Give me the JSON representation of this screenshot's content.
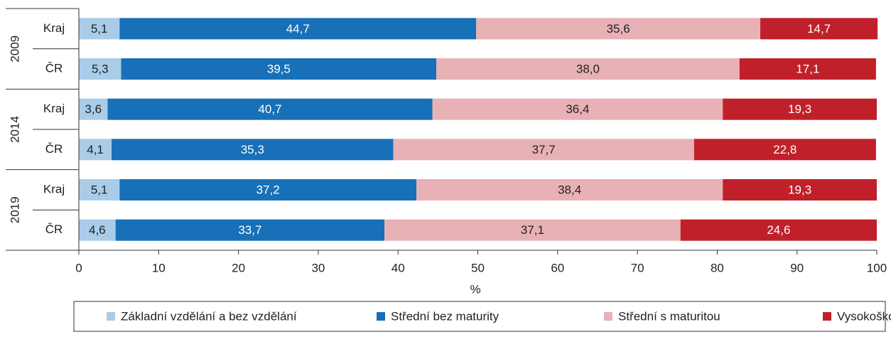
{
  "chart_data": {
    "type": "stacked-barh",
    "groups": [
      "2009",
      "2014",
      "2019"
    ],
    "categories": [
      "Kraj",
      "ČR",
      "Kraj",
      "ČR",
      "Kraj",
      "ČR"
    ],
    "series": [
      {
        "name": "Základní vzdělání a bez vzdělání",
        "color": "#a9cce8",
        "text_color": "#222222",
        "values": [
          5.1,
          5.3,
          3.6,
          4.1,
          5.1,
          4.6
        ],
        "value_labels": [
          "5,1",
          "5,3",
          "3,6",
          "4,1",
          "5,1",
          "4,6"
        ]
      },
      {
        "name": "Střední bez maturity",
        "color": "#1770b8",
        "text_color": "#ffffff",
        "values": [
          44.7,
          39.5,
          40.7,
          35.3,
          37.2,
          33.7
        ],
        "value_labels": [
          "44,7",
          "39,5",
          "40,7",
          "35,3",
          "37,2",
          "33,7"
        ]
      },
      {
        "name": "Střední s maturitou",
        "color": "#e8b1b5",
        "text_color": "#222222",
        "values": [
          35.6,
          38.0,
          36.4,
          37.7,
          38.4,
          37.1
        ],
        "value_labels": [
          "35,6",
          "38,0",
          "36,4",
          "37,7",
          "38,4",
          "37,1"
        ]
      },
      {
        "name": "Vysokoškolské",
        "color": "#c0202a",
        "text_color": "#ffffff",
        "values": [
          14.7,
          17.1,
          19.3,
          22.8,
          19.3,
          24.6
        ],
        "value_labels": [
          "14,7",
          "17,1",
          "19,3",
          "22,8",
          "19,3",
          "24,6"
        ]
      }
    ],
    "xlabel": "%",
    "xlim": [
      0,
      100
    ],
    "xticks": [
      0,
      10,
      20,
      30,
      40,
      50,
      60,
      70,
      80,
      90,
      100
    ]
  }
}
